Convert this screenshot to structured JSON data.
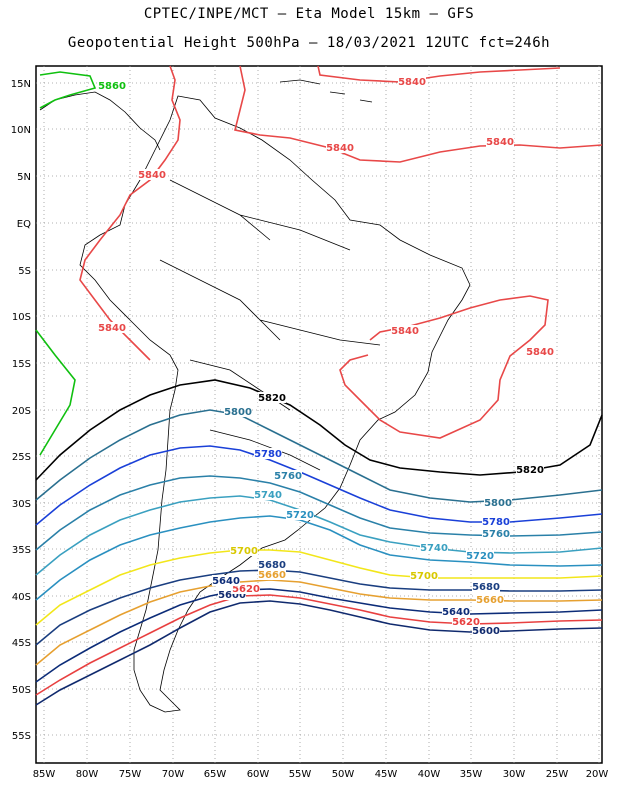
{
  "title": "CPTEC/INPE/MCT –  Eta Model 15km – GFS",
  "subtitle": "Geopotential Height 500hPa – 18/03/2021 12UTC fct=246h",
  "y_ticks": [
    "15N",
    "10N",
    "5N",
    "EQ",
    "5S",
    "10S",
    "15S",
    "20S",
    "25S",
    "30S",
    "35S",
    "40S",
    "45S",
    "50S",
    "55S"
  ],
  "x_ticks": [
    "85W",
    "80W",
    "75W",
    "70W",
    "65W",
    "60W",
    "55W",
    "50W",
    "45W",
    "40W",
    "35W",
    "30W",
    "25W",
    "20W"
  ],
  "contours": [
    {
      "value": 5600,
      "color": "#102a6e",
      "labels": [
        "5600",
        "5600"
      ]
    },
    {
      "value": 5620,
      "color": "#e84040",
      "labels": [
        "5620",
        "5620"
      ]
    },
    {
      "value": 5640,
      "color": "#0c2c78",
      "labels": [
        "5640",
        "5640"
      ]
    },
    {
      "value": 5660,
      "color": "#e6a030",
      "labels": [
        "5660",
        "5660"
      ]
    },
    {
      "value": 5680,
      "color": "#1a3e80",
      "labels": [
        "5680",
        "5680"
      ]
    },
    {
      "value": 5700,
      "color": "#f2e61a",
      "labels": [
        "5700",
        "5700"
      ]
    },
    {
      "value": 5720,
      "color": "#2a90c0",
      "labels": [
        "5720",
        "5720"
      ]
    },
    {
      "value": 5740,
      "color": "#3aa0c0",
      "labels": [
        "5740",
        "5740"
      ]
    },
    {
      "value": 5760,
      "color": "#2a80a8",
      "labels": [
        "5760",
        "5760"
      ]
    },
    {
      "value": 5780,
      "color": "#1a40d8",
      "labels": [
        "5780",
        "5780"
      ]
    },
    {
      "value": 5800,
      "color": "#2a7090",
      "labels": [
        "5800",
        "5800"
      ]
    },
    {
      "value": 5820,
      "color": "#000000",
      "labels": [
        "5820",
        "5820"
      ]
    },
    {
      "value": 5840,
      "color": "#e84848",
      "labels": [
        "5840",
        "5840",
        "5840",
        "5840",
        "5840",
        "5840",
        "5840"
      ]
    },
    {
      "value": 5860,
      "color": "#10c010",
      "labels": [
        "5860"
      ]
    }
  ]
}
